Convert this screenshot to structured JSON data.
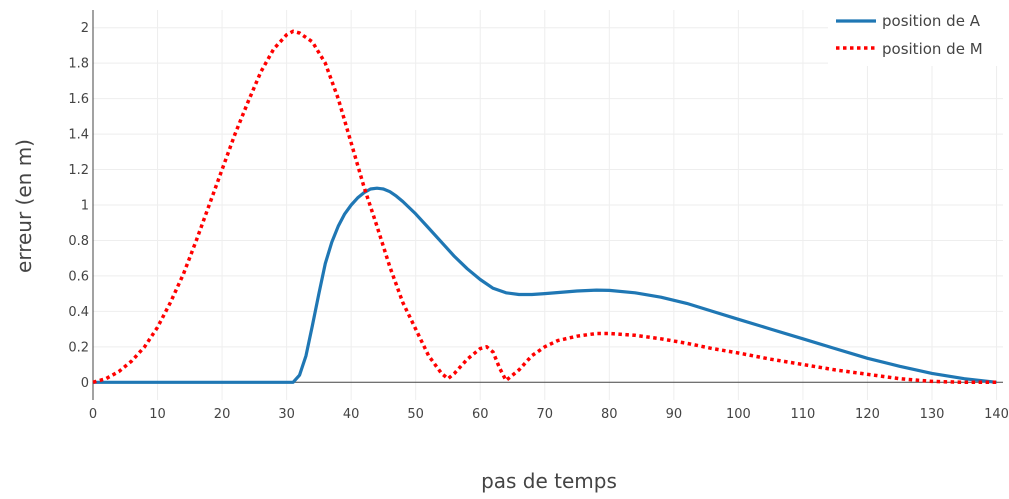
{
  "chart_data": {
    "type": "line",
    "xlabel": "pas de temps",
    "ylabel": "erreur (en m)",
    "xlim": [
      0,
      141
    ],
    "ylim": [
      -0.1,
      2.1
    ],
    "xticks": [
      0,
      10,
      20,
      30,
      40,
      50,
      60,
      70,
      80,
      90,
      100,
      110,
      120,
      130,
      140
    ],
    "yticks": [
      0,
      0.2,
      0.4,
      0.6,
      0.8,
      1,
      1.2,
      1.4,
      1.6,
      1.8,
      2
    ],
    "grid": true,
    "legend_position": "top-right",
    "series": [
      {
        "name": "position de A",
        "color": "#1f77b4",
        "style": "solid",
        "x": [
          0,
          10,
          20,
          30,
          31,
          32,
          33,
          34,
          35,
          36,
          37,
          38,
          39,
          40,
          41,
          42,
          43,
          44,
          45,
          46,
          47,
          48,
          50,
          52,
          54,
          56,
          58,
          60,
          62,
          64,
          66,
          68,
          70,
          75,
          78,
          80,
          84,
          88,
          92,
          96,
          100,
          105,
          110,
          115,
          120,
          125,
          130,
          135,
          140
        ],
        "y": [
          0,
          0,
          0,
          0,
          0,
          0.04,
          0.15,
          0.32,
          0.5,
          0.67,
          0.79,
          0.88,
          0.95,
          1.0,
          1.04,
          1.07,
          1.09,
          1.095,
          1.09,
          1.075,
          1.05,
          1.02,
          0.95,
          0.87,
          0.79,
          0.71,
          0.64,
          0.58,
          0.53,
          0.505,
          0.495,
          0.495,
          0.5,
          0.515,
          0.52,
          0.518,
          0.505,
          0.48,
          0.445,
          0.4,
          0.355,
          0.3,
          0.245,
          0.19,
          0.135,
          0.09,
          0.05,
          0.02,
          0.0
        ]
      },
      {
        "name": "position de M",
        "color": "#ff0000",
        "style": "dotted",
        "x": [
          0,
          2,
          4,
          6,
          8,
          10,
          12,
          14,
          16,
          18,
          20,
          22,
          24,
          26,
          28,
          30,
          31,
          32,
          34,
          36,
          38,
          40,
          42,
          44,
          46,
          48,
          50,
          52,
          54,
          55,
          56,
          58,
          60,
          61,
          62,
          63,
          64,
          66,
          68,
          70,
          72,
          75,
          78,
          80,
          84,
          88,
          92,
          96,
          100,
          105,
          110,
          115,
          120,
          125,
          130,
          135,
          140
        ],
        "y": [
          0,
          0.02,
          0.06,
          0.12,
          0.2,
          0.31,
          0.45,
          0.61,
          0.8,
          1.0,
          1.2,
          1.4,
          1.58,
          1.75,
          1.88,
          1.96,
          1.98,
          1.97,
          1.92,
          1.8,
          1.6,
          1.35,
          1.1,
          0.88,
          0.65,
          0.45,
          0.3,
          0.15,
          0.05,
          0.02,
          0.05,
          0.13,
          0.19,
          0.2,
          0.17,
          0.08,
          0.01,
          0.07,
          0.15,
          0.2,
          0.235,
          0.26,
          0.275,
          0.275,
          0.265,
          0.245,
          0.22,
          0.19,
          0.165,
          0.13,
          0.1,
          0.07,
          0.045,
          0.02,
          0.005,
          0.0,
          0.0
        ]
      }
    ]
  }
}
